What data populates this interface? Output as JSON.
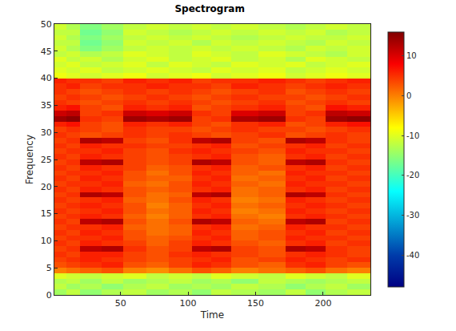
{
  "chart_data": {
    "type": "heatmap",
    "title": "Spectrogram",
    "x_label": "Time",
    "y_label": "Frequency",
    "color": "Jet",
    "xlim": [
      1,
      235
    ],
    "xticks": [
      50,
      100,
      150,
      200
    ],
    "ylim": [
      0,
      50
    ],
    "yticks": [
      0,
      5,
      10,
      15,
      20,
      25,
      30,
      35,
      40,
      45,
      50
    ],
    "colorbar_range": [
      -48,
      16
    ],
    "colorbar_ticks": [
      -40,
      -30,
      -20,
      -10,
      0,
      10
    ],
    "x": [
      1,
      10,
      20,
      36,
      52,
      69,
      86,
      103,
      117,
      132,
      152,
      172,
      187,
      202,
      218,
      235
    ],
    "y": [
      0,
      1,
      2,
      3,
      4,
      5,
      6,
      7,
      8,
      9,
      10,
      11,
      12,
      13,
      14,
      15,
      16,
      17,
      18,
      19,
      20,
      21,
      22,
      23,
      24,
      25,
      26,
      27,
      28,
      29,
      30,
      31,
      32,
      33,
      34,
      35,
      36,
      37,
      38,
      39,
      40,
      41,
      42,
      43,
      44,
      45,
      46,
      47,
      48,
      49,
      50
    ],
    "cells": [
      [
        -14,
        -12,
        -15,
        -13,
        -12,
        -14,
        -13,
        -15,
        -12,
        -13,
        -14,
        -12,
        -15,
        -13,
        -12
      ],
      [
        -12,
        -14,
        -13,
        -15,
        -13,
        -12,
        -14,
        -13,
        -14,
        -12,
        -13,
        -15,
        -13,
        -12,
        -14
      ],
      [
        -13,
        -12,
        -14,
        -12,
        -14,
        -13,
        -12,
        -14,
        -13,
        -15,
        -12,
        -13,
        -14,
        -13,
        -12
      ],
      [
        -10,
        -11,
        -12,
        -11,
        -10,
        -12,
        -11,
        -12,
        -10,
        -11,
        -12,
        -10,
        -11,
        -12,
        -10
      ],
      [
        0,
        1,
        2,
        3,
        0,
        -1,
        1,
        3,
        2,
        0,
        1,
        2,
        3,
        1,
        0
      ],
      [
        3,
        4,
        5,
        6,
        3,
        2,
        4,
        6,
        5,
        3,
        2,
        5,
        6,
        4,
        3
      ],
      [
        4,
        5,
        6,
        5,
        4,
        3,
        4,
        5,
        6,
        3,
        4,
        6,
        5,
        4,
        5
      ],
      [
        5,
        4,
        6,
        6,
        4,
        3,
        5,
        6,
        5,
        4,
        3,
        5,
        6,
        5,
        4
      ],
      [
        4,
        5,
        12,
        13,
        5,
        3,
        4,
        12,
        13,
        4,
        3,
        13,
        12,
        5,
        4
      ],
      [
        5,
        4,
        6,
        5,
        4,
        2,
        4,
        6,
        5,
        3,
        2,
        5,
        6,
        4,
        5
      ],
      [
        4,
        5,
        5,
        6,
        3,
        2,
        3,
        5,
        6,
        2,
        3,
        6,
        5,
        5,
        4
      ],
      [
        5,
        4,
        6,
        5,
        3,
        1,
        2,
        6,
        5,
        2,
        3,
        5,
        6,
        4,
        5
      ],
      [
        4,
        5,
        5,
        6,
        2,
        1,
        2,
        5,
        6,
        1,
        2,
        6,
        5,
        5,
        4
      ],
      [
        5,
        4,
        12,
        13,
        3,
        1,
        3,
        13,
        12,
        2,
        1,
        12,
        13,
        4,
        5
      ],
      [
        4,
        5,
        6,
        5,
        2,
        0,
        2,
        5,
        6,
        1,
        0,
        5,
        6,
        5,
        4
      ],
      [
        5,
        4,
        5,
        6,
        3,
        1,
        2,
        6,
        5,
        0,
        1,
        6,
        5,
        4,
        5
      ],
      [
        4,
        5,
        6,
        5,
        3,
        0,
        2,
        5,
        6,
        1,
        2,
        5,
        6,
        5,
        4
      ],
      [
        5,
        4,
        5,
        6,
        2,
        1,
        3,
        6,
        5,
        0,
        1,
        6,
        5,
        4,
        5
      ],
      [
        4,
        5,
        13,
        12,
        3,
        1,
        2,
        12,
        13,
        1,
        2,
        13,
        12,
        5,
        4
      ],
      [
        5,
        4,
        6,
        5,
        3,
        2,
        3,
        5,
        6,
        1,
        2,
        5,
        6,
        4,
        5
      ],
      [
        4,
        5,
        5,
        6,
        2,
        1,
        3,
        6,
        5,
        2,
        1,
        6,
        5,
        5,
        4
      ],
      [
        5,
        4,
        6,
        5,
        3,
        2,
        2,
        5,
        6,
        1,
        2,
        5,
        6,
        4,
        5
      ],
      [
        4,
        5,
        5,
        6,
        3,
        1,
        3,
        6,
        5,
        2,
        1,
        6,
        5,
        5,
        4
      ],
      [
        5,
        4,
        6,
        5,
        4,
        2,
        3,
        5,
        6,
        2,
        3,
        5,
        6,
        4,
        5
      ],
      [
        4,
        5,
        12,
        13,
        4,
        3,
        4,
        13,
        12,
        3,
        2,
        12,
        13,
        5,
        4
      ],
      [
        5,
        4,
        6,
        5,
        4,
        3,
        4,
        5,
        6,
        3,
        2,
        5,
        6,
        4,
        5
      ],
      [
        4,
        5,
        5,
        6,
        4,
        3,
        5,
        6,
        5,
        4,
        3,
        6,
        5,
        5,
        4
      ],
      [
        5,
        4,
        6,
        5,
        5,
        4,
        4,
        5,
        6,
        3,
        4,
        5,
        6,
        4,
        5
      ],
      [
        4,
        5,
        13,
        12,
        4,
        3,
        5,
        12,
        13,
        4,
        3,
        13,
        12,
        5,
        4
      ],
      [
        5,
        4,
        3,
        4,
        5,
        4,
        5,
        4,
        3,
        4,
        5,
        3,
        4,
        5,
        4
      ],
      [
        4,
        5,
        4,
        3,
        5,
        4,
        4,
        3,
        4,
        5,
        4,
        4,
        3,
        4,
        5
      ],
      [
        6,
        7,
        4,
        3,
        6,
        5,
        6,
        4,
        3,
        5,
        6,
        3,
        4,
        6,
        7
      ],
      [
        14,
        15,
        5,
        4,
        14,
        13,
        14,
        4,
        5,
        13,
        14,
        5,
        4,
        14,
        15
      ],
      [
        11,
        12,
        4,
        5,
        11,
        10,
        11,
        5,
        4,
        10,
        11,
        4,
        5,
        12,
        11
      ],
      [
        6,
        7,
        4,
        3,
        6,
        5,
        6,
        3,
        4,
        5,
        6,
        4,
        3,
        7,
        6
      ],
      [
        5,
        4,
        3,
        4,
        5,
        4,
        5,
        4,
        3,
        4,
        5,
        3,
        4,
        5,
        4
      ],
      [
        4,
        5,
        4,
        3,
        4,
        5,
        4,
        3,
        4,
        5,
        4,
        4,
        3,
        4,
        5
      ],
      [
        5,
        4,
        3,
        4,
        5,
        4,
        5,
        4,
        3,
        4,
        5,
        3,
        4,
        5,
        4
      ],
      [
        5,
        6,
        4,
        5,
        5,
        6,
        5,
        5,
        4,
        6,
        5,
        4,
        5,
        6,
        5
      ],
      [
        6,
        5,
        5,
        4,
        6,
        5,
        6,
        4,
        5,
        5,
        6,
        5,
        4,
        5,
        6
      ],
      [
        -9,
        -10,
        -11,
        -10,
        -9,
        -11,
        -10,
        -9,
        -11,
        -10,
        -9,
        -11,
        -10,
        -9,
        -10
      ],
      [
        -10,
        -11,
        -10,
        -12,
        -11,
        -10,
        -11,
        -12,
        -10,
        -11,
        -10,
        -12,
        -11,
        -10,
        -11
      ],
      [
        -11,
        -10,
        -12,
        -11,
        -10,
        -12,
        -10,
        -11,
        -12,
        -10,
        -11,
        -10,
        -12,
        -11,
        -10
      ],
      [
        -10,
        -12,
        -11,
        -13,
        -11,
        -10,
        -12,
        -11,
        -10,
        -12,
        -11,
        -13,
        -10,
        -11,
        -12
      ],
      [
        -12,
        -11,
        -13,
        -12,
        -10,
        -11,
        -12,
        -10,
        -11,
        -12,
        -10,
        -11,
        -12,
        -13,
        -11
      ],
      [
        -11,
        -13,
        -16,
        -14,
        -12,
        -11,
        -12,
        -11,
        -12,
        -11,
        -12,
        -13,
        -11,
        -12,
        -11
      ],
      [
        -12,
        -12,
        -17,
        -15,
        -11,
        -12,
        -11,
        -13,
        -11,
        -12,
        -11,
        -12,
        -13,
        -11,
        -12
      ],
      [
        -11,
        -13,
        -16,
        -14,
        -12,
        -11,
        -12,
        -11,
        -12,
        -13,
        -12,
        -11,
        -12,
        -12,
        -11
      ],
      [
        -12,
        -12,
        -17,
        -15,
        -11,
        -12,
        -13,
        -12,
        -11,
        -12,
        -11,
        -12,
        -11,
        -13,
        -12
      ],
      [
        -11,
        -13,
        -16,
        -14,
        -12,
        -11,
        -12,
        -11,
        -12,
        -11,
        -12,
        -13,
        -12,
        -11,
        -12
      ]
    ]
  }
}
